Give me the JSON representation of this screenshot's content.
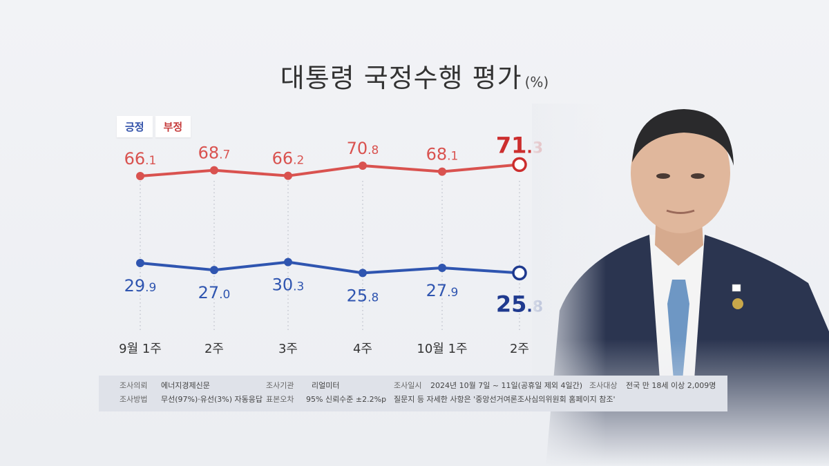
{
  "title": "대통령 국정수행 평가",
  "unit": "(%)",
  "legend": {
    "positive": "긍정",
    "negative": "부정"
  },
  "colors": {
    "positive": "#2f55b0",
    "negative": "#d9524f",
    "positive_last": "#1f3a8f",
    "negative_last": "#cc2e2e"
  },
  "chart_data": {
    "type": "line",
    "categories": [
      "9월 1주",
      "2주",
      "3주",
      "4주",
      "10월 1주",
      "2주"
    ],
    "series": [
      {
        "name": "부정",
        "values": [
          66.1,
          68.7,
          66.2,
          70.8,
          68.1,
          71.3
        ]
      },
      {
        "name": "긍정",
        "values": [
          29.9,
          27.0,
          30.3,
          25.8,
          27.9,
          25.8
        ]
      }
    ],
    "grid": "vertical dotted lines"
  },
  "footer": {
    "commission_key": "조사의뢰",
    "commission_val": "에너지경제신문",
    "agency_key": "조사기관",
    "agency_val": "리얼미터",
    "period_key": "조사일시",
    "period_val": "2024년 10월 7일 ~ 11일(공휴일 제외 4일간)",
    "target_key": "조사대상",
    "target_val": "전국 만 18세 이상 2,009명",
    "method_key": "조사방법",
    "method_val": "무선(97%)·유선(3%) 자동응답",
    "error_key": "표본오차",
    "error_val": "95% 신뢰수준 ±2.2%p",
    "note": "질문지 등 자세한 사항은 '중앙선거여론조사심의위원회 홈페이지 참조'"
  }
}
